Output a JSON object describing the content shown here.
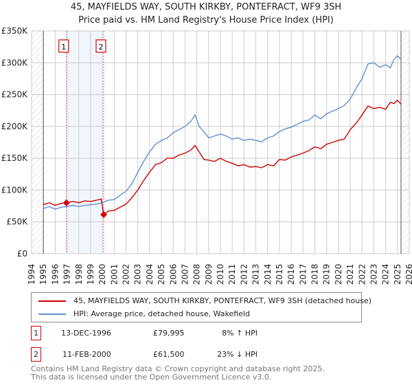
{
  "chart_data": {
    "type": "line",
    "title": "45, MAYFIELDS WAY, SOUTH KIRKBY, PONTEFRACT, WF9 3SH",
    "subtitle": "Price paid vs. HM Land Registry's House Price Index (HPI)",
    "xlim": [
      1994,
      2026
    ],
    "ylim": [
      0,
      350000
    ],
    "y_ticks": [
      {
        "v": 0,
        "label": "£0"
      },
      {
        "v": 50000,
        "label": "£50K"
      },
      {
        "v": 100000,
        "label": "£100K"
      },
      {
        "v": 150000,
        "label": "£150K"
      },
      {
        "v": 200000,
        "label": "£200K"
      },
      {
        "v": 250000,
        "label": "£250K"
      },
      {
        "v": 300000,
        "label": "£300K"
      },
      {
        "v": 350000,
        "label": "£350K"
      }
    ],
    "x_ticks": [
      "1994",
      "1995",
      "1996",
      "1997",
      "1998",
      "1999",
      "2000",
      "2001",
      "2002",
      "2003",
      "2004",
      "2005",
      "2006",
      "2007",
      "2008",
      "2009",
      "2010",
      "2011",
      "2012",
      "2013",
      "2014",
      "2015",
      "2016",
      "2017",
      "2018",
      "2019",
      "2020",
      "2021",
      "2022",
      "2023",
      "2024",
      "2025",
      "2026"
    ],
    "grid": true,
    "series": [
      {
        "name": "45, MAYFIELDS WAY, SOUTH KIRKBY, PONTEFRACT, WF9 3SH (detached house)",
        "color": "#cc0000",
        "x": [
          1995,
          1995.5,
          1996,
          1996.5,
          1996.95,
          1997.5,
          1998,
          1998.5,
          1999,
          1999.5,
          1999.9,
          2000.11,
          2000.5,
          2001,
          2001.5,
          2002,
          2002.5,
          2003,
          2003.5,
          2004,
          2004.5,
          2005,
          2005.5,
          2006,
          2006.5,
          2007,
          2007.5,
          2007.85,
          2008.2,
          2008.6,
          2009,
          2009.5,
          2010,
          2010.5,
          2011,
          2011.5,
          2012,
          2012.5,
          2013,
          2013.5,
          2014,
          2014.5,
          2015,
          2015.5,
          2016,
          2016.5,
          2017,
          2017.5,
          2018,
          2018.5,
          2019,
          2019.5,
          2020,
          2020.5,
          2021,
          2021.5,
          2022,
          2022.5,
          2023,
          2023.5,
          2024,
          2024.4,
          2024.7,
          2025,
          2025.3
        ],
        "y": [
          77000,
          80000,
          76000,
          79000,
          80000,
          82000,
          80000,
          83000,
          82000,
          84000,
          86000,
          61500,
          67000,
          68000,
          73000,
          78000,
          88000,
          100000,
          115000,
          128000,
          140000,
          143000,
          150000,
          150000,
          155000,
          158000,
          163000,
          170000,
          160000,
          148000,
          147000,
          145000,
          150000,
          145000,
          142000,
          138000,
          140000,
          136000,
          137000,
          135000,
          140000,
          138000,
          148000,
          147000,
          152000,
          155000,
          158000,
          162000,
          168000,
          165000,
          172000,
          175000,
          178000,
          180000,
          195000,
          205000,
          218000,
          232000,
          228000,
          230000,
          227000,
          238000,
          236000,
          241000,
          235000
        ]
      },
      {
        "name": "HPI: Average price, detached house, Wakefield",
        "color": "#6090d0",
        "x": [
          1995,
          1995.5,
          1996,
          1996.5,
          1997,
          1997.5,
          1998,
          1998.5,
          1999,
          1999.5,
          2000,
          2000.5,
          2001,
          2001.5,
          2002,
          2002.5,
          2003,
          2003.5,
          2004,
          2004.5,
          2005,
          2005.5,
          2006,
          2006.5,
          2007,
          2007.5,
          2007.85,
          2008.2,
          2008.6,
          2009,
          2009.5,
          2010,
          2010.5,
          2011,
          2011.5,
          2012,
          2012.5,
          2013,
          2013.5,
          2014,
          2014.5,
          2015,
          2015.5,
          2016,
          2016.5,
          2017,
          2017.5,
          2018,
          2018.5,
          2019,
          2019.5,
          2020,
          2020.5,
          2021,
          2021.5,
          2022,
          2022.5,
          2023,
          2023.5,
          2024,
          2024.4,
          2024.7,
          2025,
          2025.3
        ],
        "y": [
          71000,
          74000,
          70000,
          73000,
          74000,
          76000,
          74000,
          76000,
          77000,
          78000,
          80000,
          84000,
          85000,
          92000,
          98000,
          110000,
          128000,
          145000,
          160000,
          172000,
          178000,
          182000,
          190000,
          195000,
          200000,
          208000,
          218000,
          200000,
          192000,
          182000,
          185000,
          188000,
          185000,
          180000,
          182000,
          178000,
          180000,
          178000,
          176000,
          182000,
          185000,
          192000,
          196000,
          199000,
          203000,
          208000,
          210000,
          218000,
          212000,
          220000,
          224000,
          228000,
          233000,
          243000,
          260000,
          275000,
          298000,
          300000,
          293000,
          297000,
          292000,
          305000,
          311000,
          305000
        ]
      }
    ],
    "sales": [
      {
        "label": "1",
        "x": 1996.95,
        "y": 79995
      },
      {
        "label": "2",
        "x": 2000.11,
        "y": 61500
      }
    ]
  },
  "legend": {
    "red": "45, MAYFIELDS WAY, SOUTH KIRKBY, PONTEFRACT, WF9 3SH (detached house)",
    "blue": "HPI: Average price, detached house, Wakefield"
  },
  "transactions": [
    {
      "num": "1",
      "date": "13-DEC-1996",
      "price": "£79,995",
      "hpi": "8% ↑ HPI"
    },
    {
      "num": "2",
      "date": "11-FEB-2000",
      "price": "£61,500",
      "hpi": "23% ↓ HPI"
    }
  ],
  "footer": {
    "line1": "Contains HM Land Registry data © Crown copyright and database right 2025.",
    "line2": "This data is licensed under the Open Government Licence v3.0."
  }
}
